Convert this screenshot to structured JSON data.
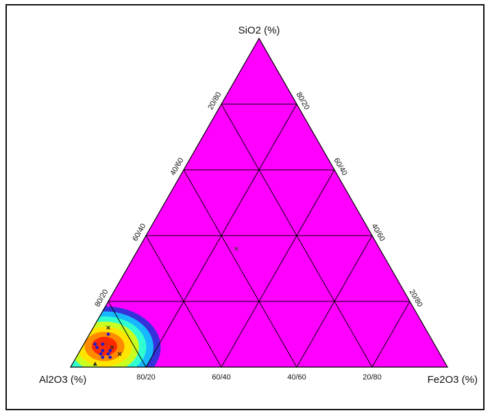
{
  "chart_data": {
    "type": "ternary",
    "vertex_labels": {
      "top": "SiO2 (%)",
      "left": "Al2O3 (%)",
      "right": "Fe2O3 (%)"
    },
    "grid_step_percent": 20,
    "left_edge_ticks": [
      "80/20",
      "60/40",
      "40/60",
      "20/80"
    ],
    "right_edge_ticks": [
      "80/20",
      "60/40",
      "40/60",
      "20/80"
    ],
    "bottom_edge_ticks": [
      "80/20",
      "60/40",
      "40/60",
      "20/80"
    ],
    "background_color": "#ff00ff",
    "grid_color": "#000000",
    "density_colormap": [
      "#2a35d8",
      "#18b8ff",
      "#30ffd0",
      "#c8ff20",
      "#ffe400",
      "#ff8a00",
      "#ff2a00"
    ],
    "density_center": {
      "SiO2": 6,
      "Al2O3": 88,
      "Fe2O3": 6
    },
    "points": [
      {
        "SiO2": 6,
        "Al2O3": 90,
        "Fe2O3": 4,
        "color": "#1d1dcc",
        "marker": "diamond"
      },
      {
        "SiO2": 7,
        "Al2O3": 88,
        "Fe2O3": 5,
        "color": "#1d1dcc",
        "marker": "diamond"
      },
      {
        "SiO2": 5,
        "Al2O3": 89,
        "Fe2O3": 6,
        "color": "#1d1dcc",
        "marker": "diamond"
      },
      {
        "SiO2": 4,
        "Al2O3": 90,
        "Fe2O3": 6,
        "color": "#1d1dcc",
        "marker": "diamond"
      },
      {
        "SiO2": 5,
        "Al2O3": 87,
        "Fe2O3": 8,
        "color": "#1d1dcc",
        "marker": "diamond"
      },
      {
        "SiO2": 4,
        "Al2O3": 88,
        "Fe2O3": 8,
        "color": "#1d1dcc",
        "marker": "diamond"
      },
      {
        "SiO2": 3,
        "Al2O3": 88,
        "Fe2O3": 9,
        "color": "#1d1dcc",
        "marker": "diamond"
      },
      {
        "SiO2": 10,
        "Al2O3": 85,
        "Fe2O3": 5,
        "color": "#1d1dcc",
        "marker": "diamond"
      },
      {
        "SiO2": 3,
        "Al2O3": 90,
        "Fe2O3": 7,
        "color": "#1d1dcc",
        "marker": "diamond"
      },
      {
        "SiO2": 12,
        "Al2O3": 84,
        "Fe2O3": 4,
        "color": "#222222",
        "marker": "cross"
      },
      {
        "SiO2": 6,
        "Al2O3": 86,
        "Fe2O3": 8,
        "color": "#222222",
        "marker": "cross"
      },
      {
        "SiO2": 4,
        "Al2O3": 85,
        "Fe2O3": 11,
        "color": "#222222",
        "marker": "cross"
      },
      {
        "SiO2": 7,
        "Al2O3": 87,
        "Fe2O3": 6,
        "color": "#cc3300",
        "marker": "cross"
      },
      {
        "SiO2": 1,
        "Al2O3": 93,
        "Fe2O3": 6,
        "color": "#222222",
        "marker": "triangle"
      },
      {
        "SiO2": 7,
        "Al2O3": 90,
        "Fe2O3": 3,
        "color": "#1d1dcc",
        "marker": "diamond"
      },
      {
        "SiO2": 36,
        "Al2O3": 38,
        "Fe2O3": 26,
        "color": "#444444",
        "marker": "cross"
      }
    ]
  }
}
